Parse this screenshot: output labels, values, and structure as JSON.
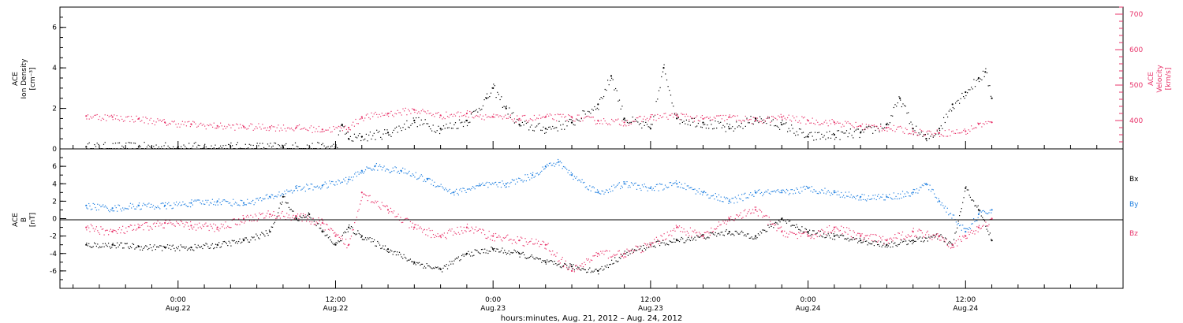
{
  "chart_data": [
    {
      "type": "scatter",
      "panel": "plasma",
      "ylabel_left": [
        "ACE",
        "Ion Density",
        "[cm⁻³]"
      ],
      "ylabel_right": [
        "ACE",
        "Velocity",
        "[km/s]"
      ],
      "ylim_left": [
        0,
        7
      ],
      "ylim_right": [
        320,
        720
      ],
      "yticks_left": [
        "0",
        "2",
        "4",
        "6"
      ],
      "yticks_right": [
        "400",
        "500",
        "600",
        "700"
      ],
      "series": [
        {
          "name": "Ion Density",
          "axis": "left",
          "color": "#000000",
          "points": [
            [
              -7,
              0.1
            ],
            [
              -3,
              0.1
            ],
            [
              0,
              0.1
            ],
            [
              4,
              0.1
            ],
            [
              8,
              0.1
            ],
            [
              12,
              0.1
            ],
            [
              12.5,
              1.2
            ],
            [
              13,
              0.5
            ],
            [
              14,
              0.6
            ],
            [
              16,
              0.8
            ],
            [
              18,
              1.4
            ],
            [
              20,
              1.0
            ],
            [
              22,
              1.4
            ],
            [
              23.5,
              2.5
            ],
            [
              24,
              3.0
            ],
            [
              25,
              2.0
            ],
            [
              26,
              1.2
            ],
            [
              28,
              1.0
            ],
            [
              30,
              1.3
            ],
            [
              32,
              2.2
            ],
            [
              33,
              3.6
            ],
            [
              34,
              1.5
            ],
            [
              36,
              1.0
            ],
            [
              37,
              4.0
            ],
            [
              38,
              1.5
            ],
            [
              40,
              1.3
            ],
            [
              42,
              1.0
            ],
            [
              44,
              1.5
            ],
            [
              46,
              1.2
            ],
            [
              48,
              0.6
            ],
            [
              50,
              0.7
            ],
            [
              52,
              0.8
            ],
            [
              54,
              1.2
            ],
            [
              55,
              2.5
            ],
            [
              56,
              1.0
            ],
            [
              57,
              0.5
            ],
            [
              58,
              1.0
            ],
            [
              59,
              2.2
            ],
            [
              60,
              2.8
            ],
            [
              61,
              3.5
            ],
            [
              61.5,
              3.8
            ],
            [
              62,
              2.5
            ]
          ]
        },
        {
          "name": "Velocity",
          "axis": "right",
          "color": "#e8336a",
          "points": [
            [
              -7,
              413
            ],
            [
              -5,
              410
            ],
            [
              -3,
              405
            ],
            [
              -1,
              395
            ],
            [
              1,
              390
            ],
            [
              3,
              385
            ],
            [
              5,
              383
            ],
            [
              7,
              382
            ],
            [
              9,
              380
            ],
            [
              11,
              375
            ],
            [
              13,
              380
            ],
            [
              14,
              410
            ],
            [
              16,
              420
            ],
            [
              18,
              430
            ],
            [
              20,
              415
            ],
            [
              22,
              420
            ],
            [
              24,
              410
            ],
            [
              26,
              405
            ],
            [
              28,
              410
            ],
            [
              30,
              410
            ],
            [
              32,
              400
            ],
            [
              34,
              395
            ],
            [
              36,
              410
            ],
            [
              38,
              415
            ],
            [
              40,
              405
            ],
            [
              42,
              410
            ],
            [
              44,
              400
            ],
            [
              46,
              410
            ],
            [
              48,
              400
            ],
            [
              50,
              395
            ],
            [
              52,
              385
            ],
            [
              54,
              380
            ],
            [
              56,
              370
            ],
            [
              58,
              365
            ],
            [
              60,
              370
            ],
            [
              61,
              390
            ],
            [
              62,
              395
            ]
          ]
        }
      ]
    },
    {
      "type": "scatter",
      "panel": "magnetic-field",
      "ylabel": [
        "ACE",
        "B",
        "[nT]"
      ],
      "ylim": [
        -8,
        8
      ],
      "yticks": [
        "-6",
        "-4",
        "-2",
        "0",
        "2",
        "4",
        "6"
      ],
      "legend": [
        "Bx",
        "By",
        "Bz"
      ],
      "legend_placement": "right",
      "series": [
        {
          "name": "Bx",
          "color": "#000000",
          "points": [
            [
              -7,
              -3
            ],
            [
              -5,
              -3
            ],
            [
              -3,
              -3.2
            ],
            [
              -1,
              -3.3
            ],
            [
              1,
              -3.3
            ],
            [
              3,
              -3
            ],
            [
              5,
              -2.5
            ],
            [
              7,
              -1.5
            ],
            [
              8,
              2.5
            ],
            [
              9,
              0
            ],
            [
              10,
              0.5
            ],
            [
              11,
              -1.5
            ],
            [
              12,
              -3
            ],
            [
              13,
              -1
            ],
            [
              14,
              -2
            ],
            [
              16,
              -3.5
            ],
            [
              18,
              -5
            ],
            [
              20,
              -5.8
            ],
            [
              22,
              -4
            ],
            [
              24,
              -3.5
            ],
            [
              26,
              -4
            ],
            [
              28,
              -5
            ],
            [
              30,
              -5.5
            ],
            [
              32,
              -6
            ],
            [
              34,
              -4
            ],
            [
              36,
              -3
            ],
            [
              38,
              -2.5
            ],
            [
              40,
              -2
            ],
            [
              42,
              -1.5
            ],
            [
              44,
              -2
            ],
            [
              46,
              0
            ],
            [
              48,
              -1.5
            ],
            [
              50,
              -2
            ],
            [
              52,
              -2.5
            ],
            [
              54,
              -3
            ],
            [
              56,
              -2.5
            ],
            [
              58,
              -2
            ],
            [
              59,
              -3
            ],
            [
              60,
              3.5
            ],
            [
              61,
              1
            ],
            [
              62,
              -2.5
            ]
          ]
        },
        {
          "name": "By",
          "color": "#1f7fe0",
          "points": [
            [
              -7,
              1.5
            ],
            [
              -5,
              1.2
            ],
            [
              -3,
              1.5
            ],
            [
              -1,
              1.5
            ],
            [
              1,
              1.8
            ],
            [
              3,
              2
            ],
            [
              5,
              1.8
            ],
            [
              7,
              2.5
            ],
            [
              9,
              3.5
            ],
            [
              11,
              3.8
            ],
            [
              13,
              4.5
            ],
            [
              14,
              5.5
            ],
            [
              15,
              6
            ],
            [
              17,
              5.5
            ],
            [
              19,
              4.5
            ],
            [
              21,
              3
            ],
            [
              23,
              3.8
            ],
            [
              25,
              4
            ],
            [
              27,
              5
            ],
            [
              28,
              6
            ],
            [
              29,
              6.5
            ],
            [
              30,
              5
            ],
            [
              32,
              3
            ],
            [
              34,
              4
            ],
            [
              36,
              3.5
            ],
            [
              38,
              4
            ],
            [
              40,
              3
            ],
            [
              42,
              2
            ],
            [
              44,
              3
            ],
            [
              46,
              3
            ],
            [
              48,
              3.5
            ],
            [
              50,
              3
            ],
            [
              52,
              2.5
            ],
            [
              54,
              2.5
            ],
            [
              56,
              3
            ],
            [
              57,
              4
            ],
            [
              58,
              2
            ],
            [
              60,
              -1.5
            ],
            [
              61,
              0.5
            ],
            [
              62,
              1
            ]
          ]
        },
        {
          "name": "Bz",
          "color": "#e8336a",
          "points": [
            [
              -7,
              -1
            ],
            [
              -5,
              -1.5
            ],
            [
              -3,
              -1
            ],
            [
              -1,
              -0.5
            ],
            [
              1,
              -0.8
            ],
            [
              3,
              -1
            ],
            [
              5,
              0
            ],
            [
              7,
              0.5
            ],
            [
              9,
              0.3
            ],
            [
              11,
              -0.5
            ],
            [
              12,
              -2
            ],
            [
              13,
              -3
            ],
            [
              14,
              3
            ],
            [
              16,
              1
            ],
            [
              18,
              -1
            ],
            [
              20,
              -2
            ],
            [
              22,
              -1
            ],
            [
              24,
              -2
            ],
            [
              26,
              -2.5
            ],
            [
              28,
              -3
            ],
            [
              30,
              -6
            ],
            [
              32,
              -4
            ],
            [
              34,
              -4
            ],
            [
              36,
              -3
            ],
            [
              38,
              -1
            ],
            [
              40,
              -2
            ],
            [
              42,
              0
            ],
            [
              44,
              1
            ],
            [
              46,
              -1.5
            ],
            [
              48,
              -2
            ],
            [
              50,
              -1
            ],
            [
              52,
              -2
            ],
            [
              54,
              -2.5
            ],
            [
              56,
              -1.5
            ],
            [
              58,
              -2
            ],
            [
              59,
              -3
            ],
            [
              60,
              -2
            ],
            [
              61,
              -1
            ],
            [
              62,
              0
            ]
          ]
        }
      ]
    }
  ],
  "x_axis": {
    "ticks": [
      {
        "value": 0,
        "time": "0:00",
        "date": "Aug.22"
      },
      {
        "value": 12,
        "time": "12:00",
        "date": "Aug.22"
      },
      {
        "value": 24,
        "time": "0:00",
        "date": "Aug.23"
      },
      {
        "value": 36,
        "time": "12:00",
        "date": "Aug.23"
      },
      {
        "value": 48,
        "time": "0:00",
        "date": "Aug.24"
      },
      {
        "value": 60,
        "time": "12:00",
        "date": "Aug.24"
      }
    ],
    "range_hours": [
      -9,
      72
    ],
    "xlabel": "hours:minutes, Aug. 21, 2012 – Aug. 24, 2012"
  },
  "colors": {
    "black": "#000000",
    "pink": "#e8336a",
    "blue": "#1f7fe0"
  }
}
